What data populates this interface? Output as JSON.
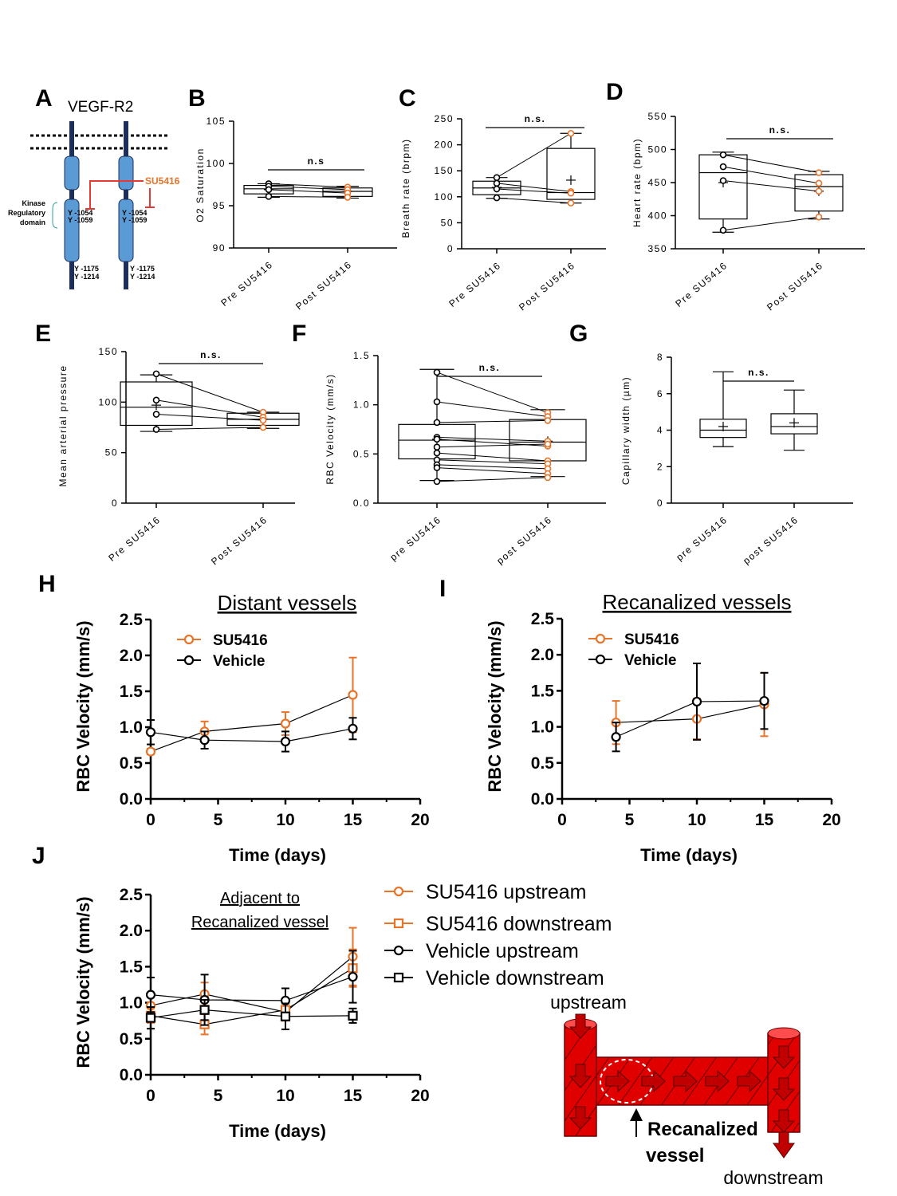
{
  "colors": {
    "orange": "#E8742A",
    "black": "#000000",
    "navy": "#1B2F5E",
    "receptor": "#5B9BD5",
    "inhibitor": "#E53935",
    "vessel": "#E00000"
  },
  "panel_labels": {
    "A": "A",
    "B": "B",
    "C": "C",
    "D": "D",
    "E": "E",
    "F": "F",
    "G": "G",
    "H": "H",
    "I": "I",
    "J": "J"
  },
  "diagram": {
    "title": "VEGF-R2",
    "inhibitor": "SU5416",
    "domain_label": [
      "Kinase",
      "Regulatory",
      "domain"
    ],
    "sites_upper": [
      "Y -1054",
      "Y -1059"
    ],
    "sites_lower": [
      "Y -1175",
      "Y -1214"
    ]
  },
  "vessel_diagram": {
    "upstream": "upstream",
    "downstream": "downstream",
    "caption_line1": "Recanalized",
    "caption_line2": "vessel"
  },
  "chart_data": [
    {
      "id": "B",
      "type": "box",
      "ylabel": "O2 Saturation",
      "ylim": [
        90,
        105
      ],
      "yticks": [
        90,
        95,
        100,
        105
      ],
      "categories": [
        "Pre SU5416",
        "Post SU5416"
      ],
      "annotation": "n.s",
      "groups": [
        {
          "min": 96.0,
          "q1": 96.4,
          "median": 97.0,
          "q3": 97.4,
          "max": 97.6,
          "mean": 96.9,
          "points": [
            97.6,
            97.3,
            96.9,
            96.1
          ]
        },
        {
          "min": 95.9,
          "q1": 96.1,
          "median": 96.7,
          "q3": 97.1,
          "max": 97.3,
          "mean": 96.7,
          "points": [
            97.2,
            96.9,
            96.5,
            96.0
          ]
        }
      ],
      "paired": true
    },
    {
      "id": "C",
      "type": "box",
      "ylabel": "Breath rate (brpm)",
      "ylim": [
        0,
        250
      ],
      "yticks": [
        0,
        50,
        100,
        150,
        200,
        250
      ],
      "categories": [
        "Pre SU5416",
        "Post SU5416"
      ],
      "annotation": "n.s.",
      "groups": [
        {
          "min": 97,
          "q1": 104,
          "median": 117,
          "q3": 130,
          "max": 137,
          "mean": 118,
          "points": [
            137,
            126,
            115,
            98
          ]
        },
        {
          "min": 88,
          "q1": 95,
          "median": 108,
          "q3": 193,
          "max": 222,
          "mean": 132,
          "points": [
            222,
            110,
            107,
            88
          ]
        }
      ],
      "paired": true
    },
    {
      "id": "D",
      "type": "box",
      "ylabel": "Heart rate (bpm)",
      "ylim": [
        350,
        550
      ],
      "yticks": [
        350,
        400,
        450,
        500,
        550
      ],
      "categories": [
        "Pre SU5416",
        "Post SU5416"
      ],
      "annotation": "n.s.",
      "groups": [
        {
          "min": 375,
          "q1": 395,
          "median": 465,
          "q3": 492,
          "max": 496,
          "mean": 450,
          "points": [
            492,
            474,
            453,
            378
          ]
        },
        {
          "min": 395,
          "q1": 407,
          "median": 444,
          "q3": 462,
          "max": 467,
          "mean": 437,
          "points": [
            465,
            449,
            437,
            398
          ]
        }
      ],
      "paired": true
    },
    {
      "id": "E",
      "type": "box",
      "ylabel": "Mean arterial pressure",
      "ylim": [
        0,
        150
      ],
      "yticks": [
        0,
        50,
        100,
        150
      ],
      "categories": [
        "Pre SU5416",
        "Post SU5416"
      ],
      "annotation": "n.s.",
      "groups": [
        {
          "min": 71,
          "q1": 77,
          "median": 95,
          "q3": 120,
          "max": 127,
          "mean": 97,
          "points": [
            128,
            102,
            88,
            73
          ]
        },
        {
          "min": 74,
          "q1": 77,
          "median": 83,
          "q3": 89,
          "max": 90,
          "mean": 83,
          "points": [
            90,
            85,
            82,
            75
          ]
        }
      ],
      "paired": true
    },
    {
      "id": "F",
      "type": "box",
      "ylabel": "RBC Velocity (mm/s)",
      "ylim": [
        0,
        1.5
      ],
      "yticks": [
        0.0,
        0.5,
        1.0,
        1.5
      ],
      "categories": [
        "pre SU5416",
        "post SU5416"
      ],
      "annotation": "n.s.",
      "groups": [
        {
          "min": 0.23,
          "q1": 0.45,
          "median": 0.64,
          "q3": 0.8,
          "max": 1.36,
          "mean": 0.65,
          "points": [
            1.33,
            1.03,
            0.82,
            0.67,
            0.65,
            0.57,
            0.51,
            0.44,
            0.39,
            0.36,
            0.22
          ]
        },
        {
          "min": 0.27,
          "q1": 0.43,
          "median": 0.62,
          "q3": 0.85,
          "max": 0.95,
          "mean": 0.63,
          "points": [
            0.92,
            0.88,
            0.84,
            0.63,
            0.58,
            0.6,
            0.43,
            0.4,
            0.35,
            0.3,
            0.26
          ]
        }
      ],
      "paired": true
    },
    {
      "id": "G",
      "type": "box",
      "ylabel": "Capillary width (µm)",
      "ylim": [
        0,
        8
      ],
      "yticks": [
        0,
        2,
        4,
        6,
        8
      ],
      "categories": [
        "pre SU5416",
        "post SU5416"
      ],
      "annotation": "n.s.",
      "groups": [
        {
          "min": 3.1,
          "q1": 3.6,
          "median": 4.0,
          "q3": 4.6,
          "max": 7.2,
          "mean": 4.2,
          "points": []
        },
        {
          "min": 2.9,
          "q1": 3.8,
          "median": 4.2,
          "q3": 4.9,
          "max": 6.2,
          "mean": 4.4,
          "points": []
        }
      ],
      "paired": false
    },
    {
      "id": "H",
      "type": "line",
      "title": "Distant vessels",
      "xlabel": "Time (days)",
      "ylabel": "RBC Velocity (mm/s)",
      "xlim": [
        0,
        20
      ],
      "ylim": [
        0,
        2.5
      ],
      "xticks": [
        0,
        5,
        10,
        15,
        20
      ],
      "yticks": [
        "0.0",
        "0.5",
        "1.0",
        "1.5",
        "2.0",
        "2.5"
      ],
      "series": [
        {
          "name": "SU5416",
          "color": "orange",
          "marker": "circle",
          "x": [
            0,
            4,
            10,
            15
          ],
          "y": [
            0.66,
            0.94,
            1.05,
            1.45
          ],
          "err": [
            0.04,
            0.14,
            0.16,
            0.52
          ]
        },
        {
          "name": "Vehicle",
          "color": "black",
          "marker": "circle",
          "x": [
            0,
            4,
            10,
            15
          ],
          "y": [
            0.93,
            0.82,
            0.8,
            0.98
          ],
          "err": [
            0.17,
            0.12,
            0.14,
            0.15
          ]
        }
      ]
    },
    {
      "id": "I",
      "type": "line",
      "title": "Recanalized  vessels",
      "xlabel": "Time (days)",
      "ylabel": "RBC Velocity (mm/s)",
      "xlim": [
        0,
        20
      ],
      "ylim": [
        0,
        2.5
      ],
      "xticks": [
        0,
        5,
        10,
        15,
        20
      ],
      "yticks": [
        "0.0",
        "0.5",
        "1.0",
        "1.5",
        "2.0",
        "2.5"
      ],
      "series": [
        {
          "name": "SU5416",
          "color": "orange",
          "marker": "circle",
          "x": [
            4,
            10,
            15
          ],
          "y": [
            1.06,
            1.11,
            1.31
          ],
          "err": [
            0.3,
            0.28,
            0.44
          ]
        },
        {
          "name": "Vehicle",
          "color": "black",
          "marker": "circle",
          "x": [
            4,
            10,
            15
          ],
          "y": [
            0.86,
            1.35,
            1.36
          ],
          "err": [
            0.2,
            0.53,
            0.39
          ]
        }
      ]
    },
    {
      "id": "J",
      "type": "line",
      "title_line1": "Adjacent to",
      "title_line2": "Recanalized  vessel",
      "xlabel": "Time (days)",
      "ylabel": "RBC Velocity (mm/s)",
      "xlim": [
        0,
        20
      ],
      "ylim": [
        0,
        2.5
      ],
      "xticks": [
        0,
        5,
        10,
        15,
        20
      ],
      "yticks": [
        "0.0",
        "0.5",
        "1.0",
        "1.5",
        "2.0",
        "2.5"
      ],
      "series": [
        {
          "name": "SU5416 upstream",
          "color": "orange",
          "marker": "circle",
          "x": [
            0,
            4,
            10,
            15
          ],
          "y": [
            0.96,
            1.12,
            0.87,
            1.64
          ],
          "err": [
            0.12,
            0.16,
            0.12,
            0.4
          ]
        },
        {
          "name": "SU5416 downstream",
          "color": "orange",
          "marker": "square",
          "x": [
            0,
            4,
            10,
            15
          ],
          "y": [
            0.82,
            0.7,
            0.9,
            1.48
          ],
          "err": [
            0.1,
            0.14,
            0.13,
            0.26
          ]
        },
        {
          "name": "Vehicle upstream",
          "color": "black",
          "marker": "circle",
          "x": [
            0,
            4,
            10,
            15
          ],
          "y": [
            1.11,
            1.04,
            1.03,
            1.36
          ],
          "err": [
            0.24,
            0.35,
            0.17,
            0.36
          ]
        },
        {
          "name": "Vehicle downstream",
          "color": "black",
          "marker": "square",
          "x": [
            0,
            4,
            10,
            15
          ],
          "y": [
            0.79,
            0.9,
            0.81,
            0.82
          ],
          "err": [
            0.15,
            0.14,
            0.18,
            0.1
          ]
        }
      ]
    }
  ]
}
